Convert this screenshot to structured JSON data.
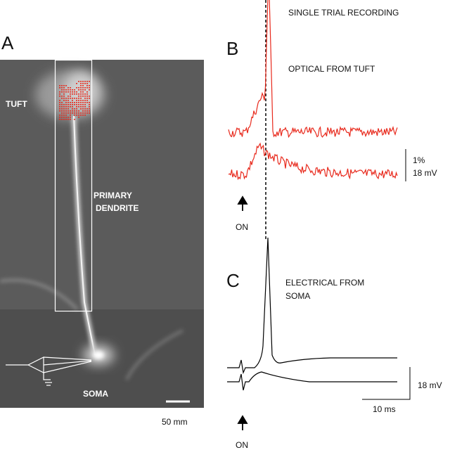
{
  "panels": {
    "a": {
      "label": "A",
      "tuft": "TUFT",
      "dendrite": [
        "PRIMARY",
        "DENDRITE"
      ],
      "soma": "SOMA",
      "scale_bar": "50 mm"
    },
    "b": {
      "label": "B",
      "heading": "SINGLE TRIAL RECORDING",
      "trace_label": "OPTICAL FROM TUFT",
      "scale": [
        "1%",
        "18 mV"
      ],
      "stimulus": "ON"
    },
    "c": {
      "label": "C",
      "trace_label": [
        "ELECTRICAL FROM",
        "SOMA"
      ],
      "scale_y": "18 mV",
      "scale_x": "10 ms",
      "stimulus": "ON"
    }
  }
}
